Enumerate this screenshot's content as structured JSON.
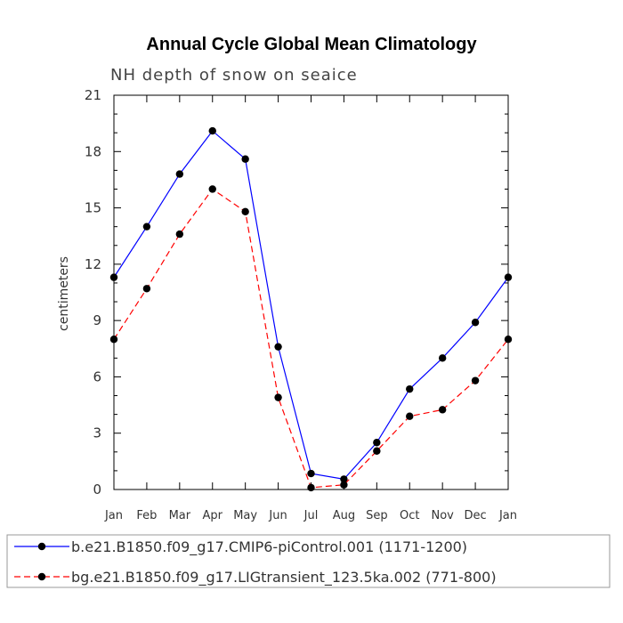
{
  "chart_data": {
    "type": "line",
    "title": "Annual Cycle Global Mean Climatology",
    "subtitle": "NH depth of snow on seaice",
    "ylabel": "centimeters",
    "xlabel": "",
    "ylim": [
      0,
      21
    ],
    "yticks": [
      "0",
      "3",
      "6",
      "9",
      "12",
      "15",
      "18",
      "21"
    ],
    "categories": [
      "Jan",
      "Feb",
      "Mar",
      "Apr",
      "May",
      "Jun",
      "Jul",
      "Aug",
      "Sep",
      "Oct",
      "Nov",
      "Dec",
      "Jan"
    ],
    "series": [
      {
        "name": "b.e21.B1850.f09_g17.CMIP6-piControl.001 (1171-1200)",
        "color": "#0000ff",
        "dash": "solid",
        "values": [
          11.3,
          14.0,
          16.8,
          19.1,
          17.6,
          7.6,
          0.85,
          0.55,
          2.5,
          5.35,
          7.0,
          8.9,
          11.3
        ]
      },
      {
        "name": "bg.e21.B1850.f09_g17.LIGtransient_123.5ka.002 (771-800)",
        "color": "#ff0000",
        "dash": "dashed",
        "values": [
          8.0,
          10.7,
          13.6,
          16.0,
          14.8,
          4.9,
          0.1,
          0.25,
          2.05,
          3.9,
          4.25,
          5.8,
          8.0
        ]
      }
    ],
    "legend_position": "bottom"
  }
}
